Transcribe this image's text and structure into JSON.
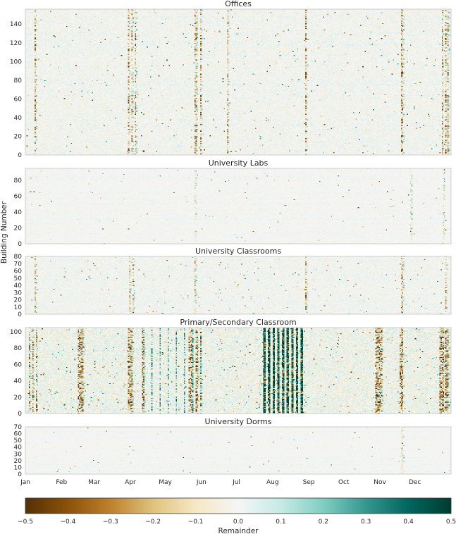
{
  "chart_data": {
    "type": "heatmap",
    "ylabel": "Building Number",
    "x_months": [
      "Jan",
      "Feb",
      "Mar",
      "Apr",
      "May",
      "Jun",
      "Jul",
      "Aug",
      "Sep",
      "Oct",
      "Nov",
      "Dec"
    ],
    "colorbar": {
      "label": "Remainder",
      "min": -0.5,
      "max": 0.5,
      "ticks": [
        "−0.5",
        "−0.4",
        "−0.3",
        "−0.2",
        "−0.1",
        "0.0",
        "0.1",
        "0.2",
        "0.3",
        "0.4",
        "0.5"
      ],
      "colormap": [
        "#543005",
        "#8c510a",
        "#bf812d",
        "#dfc27d",
        "#f6e8c3",
        "#f5f5f5",
        "#c7eae5",
        "#80cdc1",
        "#35978f",
        "#01665e",
        "#003c30"
      ]
    },
    "panels": [
      {
        "title": "Offices",
        "n_buildings": 156,
        "yticks": [
          0,
          20,
          40,
          60,
          80,
          100,
          120,
          140
        ],
        "intensity": 0.85,
        "event_days": [
          8,
          88,
          91,
          94,
          145,
          146,
          150,
          173,
          240,
          322,
          323,
          357,
          360,
          362
        ]
      },
      {
        "title": "University Labs",
        "n_buildings": 95,
        "yticks": [
          0,
          20,
          40,
          60,
          80
        ],
        "intensity": 0.35,
        "event_days": [
          145,
          330,
          358
        ]
      },
      {
        "title": "University Classrooms",
        "n_buildings": 80,
        "yticks": [
          0,
          10,
          20,
          30,
          40,
          50,
          60,
          70,
          80
        ],
        "intensity": 0.75,
        "event_days": [
          8,
          89,
          92,
          145,
          240,
          322,
          323,
          360
        ]
      },
      {
        "title": "Primary/Secondary Classroom",
        "n_buildings": 105,
        "yticks": [
          0,
          20,
          40,
          60,
          80,
          100
        ],
        "intensity": 1.6,
        "event_days": [
          3,
          6,
          9,
          45,
          46,
          47,
          48,
          49,
          88,
          89,
          90,
          91,
          100,
          101,
          140,
          141,
          142,
          146,
          147,
          150,
          300,
          301,
          302,
          303,
          304,
          305,
          321,
          322,
          323,
          355,
          356,
          357,
          358,
          360,
          361,
          362
        ],
        "summer_high": [
          204,
          208,
          212,
          216,
          220,
          224,
          228,
          232,
          236
        ]
      },
      {
        "title": "University Dorms",
        "n_buildings": 70,
        "yticks": [
          0,
          10,
          20,
          30,
          40,
          50,
          60,
          70
        ],
        "intensity": 0.3,
        "event_days": [
          322,
          323
        ]
      }
    ]
  }
}
